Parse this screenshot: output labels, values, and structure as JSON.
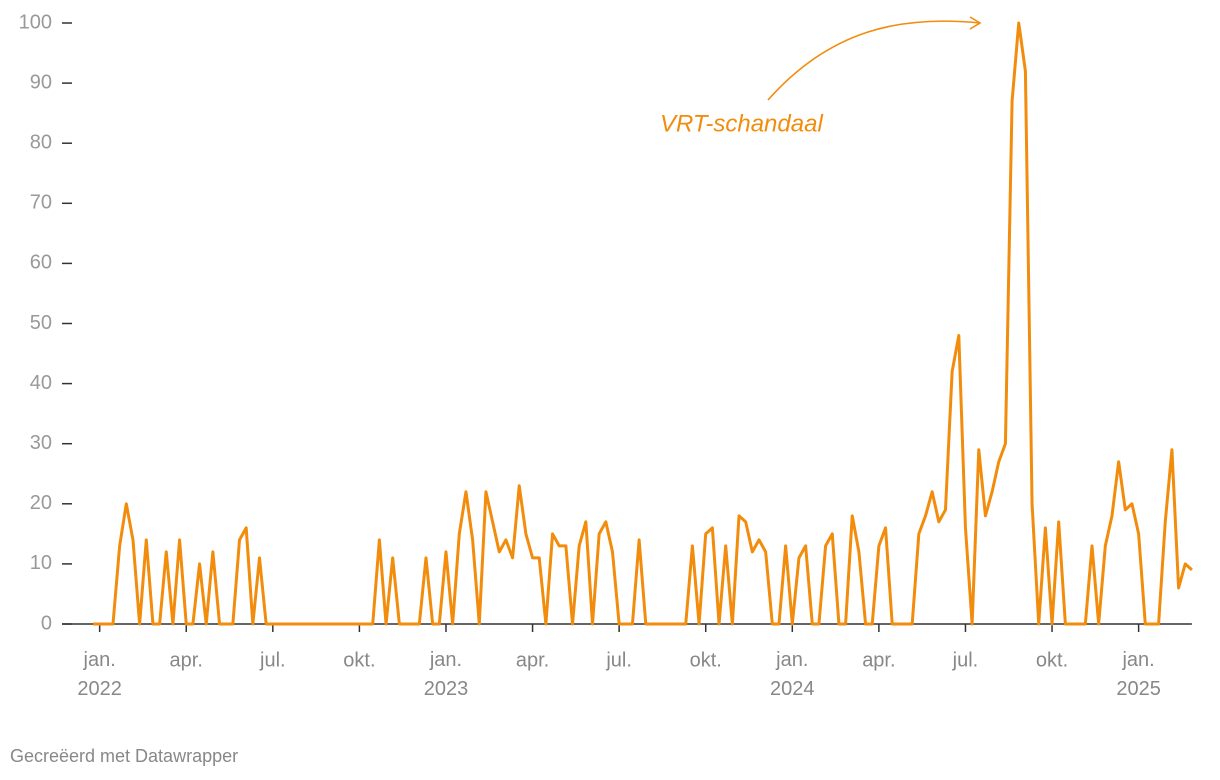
{
  "chart_data": {
    "type": "line",
    "annotation": "VRT-schandaal",
    "footer": "Gecreëerd met Datawrapper",
    "categories": [
      null,
      "jan. 2022",
      null,
      null,
      null,
      null,
      null,
      null,
      null,
      null,
      null,
      null,
      null,
      null,
      "apr.",
      null,
      null,
      null,
      null,
      null,
      null,
      null,
      null,
      null,
      null,
      null,
      null,
      "jul.",
      null,
      null,
      null,
      null,
      null,
      null,
      null,
      null,
      null,
      null,
      null,
      null,
      "okt.",
      null,
      null,
      null,
      null,
      null,
      null,
      null,
      null,
      null,
      null,
      null,
      null,
      "jan. 2023",
      null,
      null,
      null,
      null,
      null,
      null,
      null,
      null,
      null,
      null,
      null,
      null,
      "apr.",
      null,
      null,
      null,
      null,
      null,
      null,
      null,
      null,
      null,
      null,
      null,
      null,
      "jul.",
      null,
      null,
      null,
      null,
      null,
      null,
      null,
      null,
      null,
      null,
      null,
      null,
      "okt.",
      null,
      null,
      null,
      null,
      null,
      null,
      null,
      null,
      null,
      null,
      null,
      null,
      "jan. 2024",
      null,
      null,
      null,
      null,
      null,
      null,
      null,
      null,
      null,
      null,
      null,
      null,
      "apr.",
      null,
      null,
      null,
      null,
      null,
      null,
      null,
      null,
      null,
      null,
      null,
      null,
      "jul.",
      null,
      null,
      null,
      null,
      null,
      null,
      null,
      null,
      null,
      null,
      null,
      null,
      "okt.",
      null,
      null,
      null,
      null,
      null,
      null,
      null,
      null,
      null,
      null,
      null,
      null,
      "jan. 2025",
      null,
      null,
      null,
      null,
      null,
      null,
      null,
      null
    ],
    "values": [
      0,
      0,
      0,
      0,
      13,
      20,
      14,
      0,
      14,
      0,
      0,
      12,
      0,
      14,
      0,
      0,
      10,
      0,
      12,
      0,
      0,
      0,
      14,
      16,
      0,
      11,
      0,
      0,
      0,
      0,
      0,
      0,
      0,
      0,
      0,
      0,
      0,
      0,
      0,
      0,
      0,
      0,
      0,
      14,
      0,
      11,
      0,
      0,
      0,
      0,
      11,
      0,
      0,
      12,
      0,
      15,
      22,
      14,
      0,
      22,
      17,
      12,
      14,
      11,
      23,
      15,
      11,
      11,
      0,
      15,
      13,
      13,
      0,
      13,
      17,
      0,
      15,
      17,
      12,
      0,
      0,
      0,
      14,
      0,
      0,
      0,
      0,
      0,
      0,
      0,
      13,
      0,
      15,
      16,
      0,
      13,
      0,
      18,
      17,
      12,
      14,
      12,
      0,
      0,
      13,
      0,
      11,
      13,
      0,
      0,
      13,
      15,
      0,
      0,
      18,
      12,
      0,
      0,
      13,
      16,
      0,
      0,
      0,
      0,
      15,
      18,
      22,
      17,
      19,
      42,
      48,
      16,
      0,
      29,
      18,
      22,
      27,
      30,
      87,
      100,
      92,
      20,
      0,
      16,
      0,
      17,
      0,
      0,
      0,
      0,
      13,
      0,
      13,
      18,
      27,
      19,
      20,
      15,
      0,
      0,
      0,
      17,
      29,
      6,
      10,
      9
    ],
    "color": "#f28c0c",
    "ylim": [
      0,
      100
    ],
    "yticks": [
      0,
      10,
      20,
      30,
      40,
      50,
      60,
      70,
      80,
      90,
      100
    ]
  }
}
